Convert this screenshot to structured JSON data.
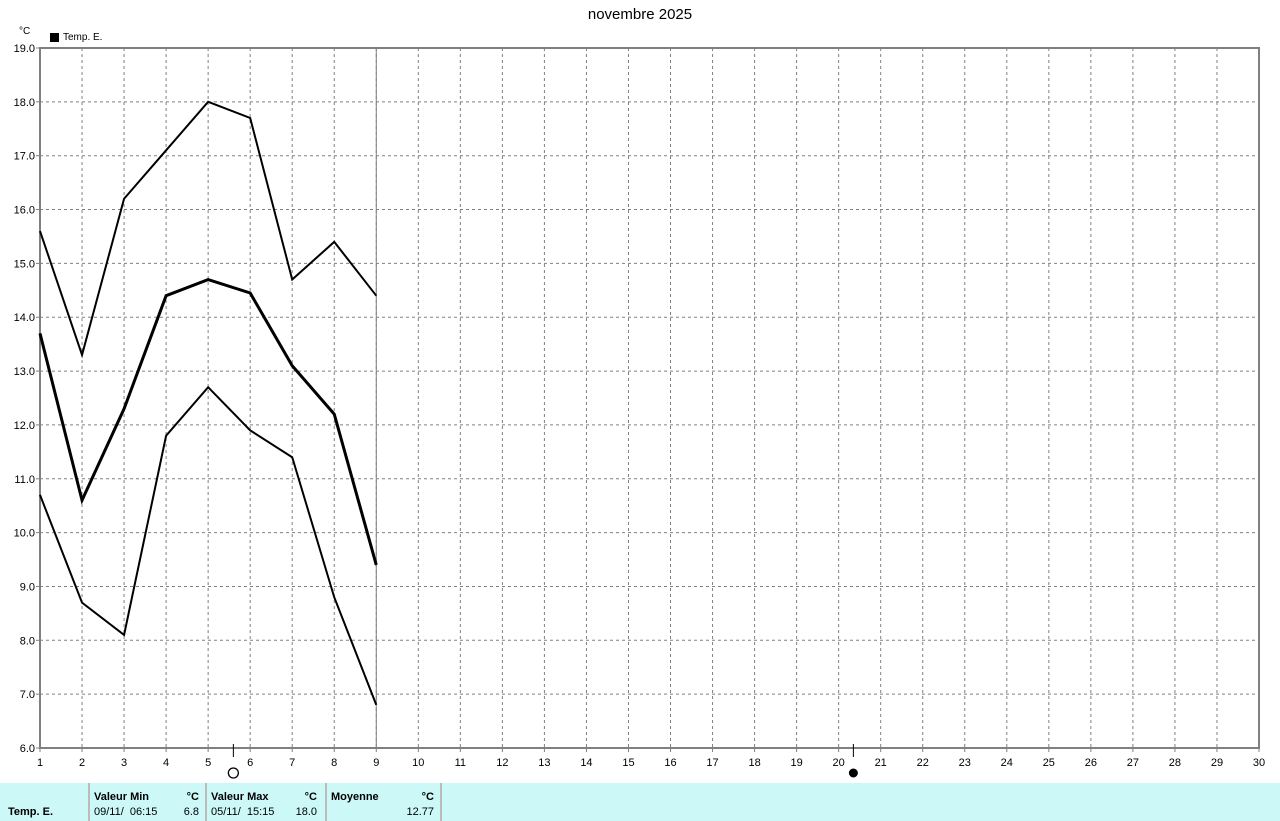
{
  "chart_data": {
    "type": "line",
    "title": "novembre 2025",
    "ylabel": "°C",
    "ylim": [
      6.0,
      19.0
    ],
    "xlim": [
      1,
      30
    ],
    "x_ticks": [
      1,
      2,
      3,
      4,
      5,
      6,
      7,
      8,
      9,
      10,
      11,
      12,
      13,
      14,
      15,
      16,
      17,
      18,
      19,
      20,
      21,
      22,
      23,
      24,
      25,
      26,
      27,
      28,
      29,
      30
    ],
    "y_ticks": [
      "6.0",
      "7.0",
      "8.0",
      "9.0",
      "10.0",
      "11.0",
      "12.0",
      "13.0",
      "14.0",
      "15.0",
      "16.0",
      "17.0",
      "18.0",
      "19.0"
    ],
    "grid": true,
    "legend": {
      "position": "top-left",
      "label": "Temp. E."
    },
    "x": [
      1,
      2,
      3,
      4,
      5,
      6,
      7,
      8,
      9
    ],
    "series": [
      {
        "role": "max",
        "values": [
          15.6,
          13.3,
          16.2,
          17.1,
          18.0,
          17.7,
          14.7,
          15.4,
          14.4
        ]
      },
      {
        "role": "mean",
        "values": [
          13.7,
          10.6,
          12.3,
          14.4,
          14.7,
          14.45,
          13.1,
          12.2,
          9.4
        ]
      },
      {
        "role": "min",
        "values": [
          10.7,
          8.7,
          8.1,
          11.8,
          12.7,
          11.9,
          11.4,
          8.8,
          6.8
        ]
      }
    ],
    "current_day": 9,
    "moon_phases": [
      {
        "day": 5.6,
        "phase": "full-moon"
      },
      {
        "day": 20.35,
        "phase": "new-moon"
      }
    ],
    "line_color": "#000000",
    "grid_color": "#808080"
  },
  "summary": {
    "row_label": "Temp. E.",
    "min_label": "Valeur Min",
    "min_unit": "°C",
    "min_date": "09/11/  06:15",
    "min_value": "6.8",
    "max_label": "Valeur Max",
    "max_unit": "°C",
    "max_date": "05/11/  15:15",
    "max_value": "18.0",
    "avg_label": "Moyenne",
    "avg_unit": "°C",
    "avg_value": "12.77",
    "background": "#ccf8f8"
  }
}
